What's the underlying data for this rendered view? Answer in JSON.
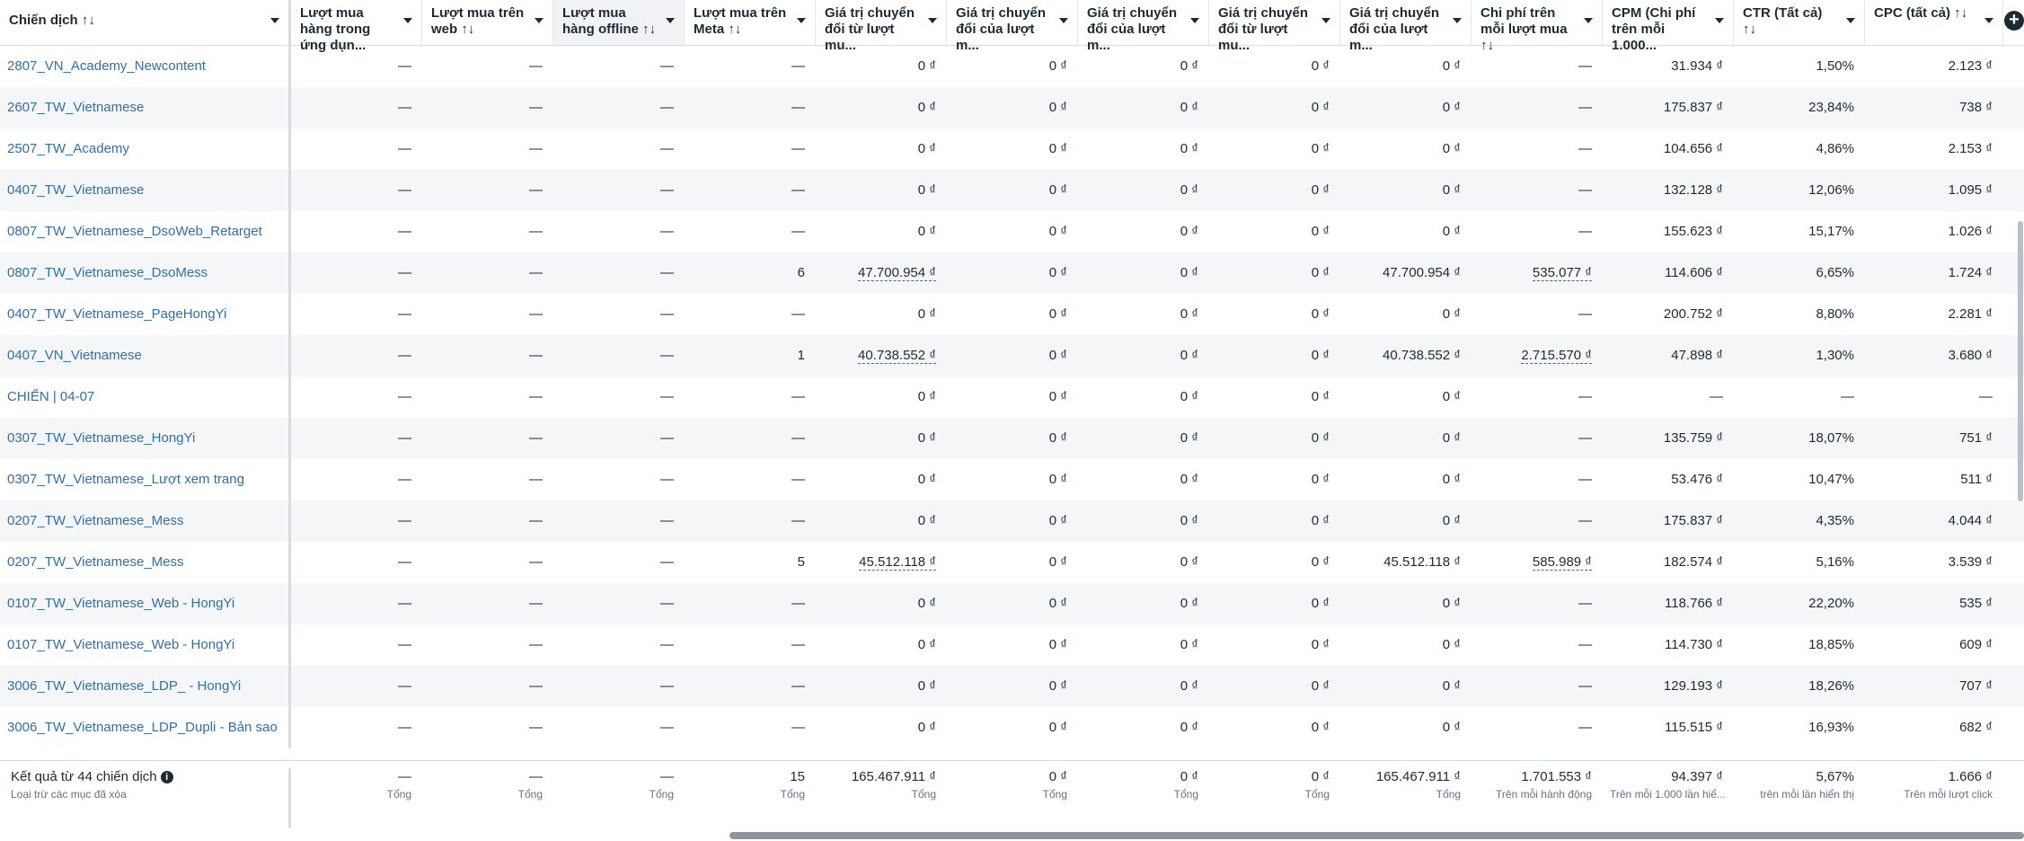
{
  "columns": [
    {
      "key": "campaign",
      "label": "Chiến dịch ↑↓"
    },
    {
      "key": "app_purchases",
      "label": "Lượt mua hàng trong ứng dụn..."
    },
    {
      "key": "web_purchases",
      "label": "Lượt mua trên web ↑↓"
    },
    {
      "key": "offline_purchases",
      "label": "Lượt mua hàng offline ↑↓"
    },
    {
      "key": "meta_purchases",
      "label": "Lượt mua trên Meta ↑↓"
    },
    {
      "key": "conv_value_purchases",
      "label": "Giá trị chuyển đổi từ lượt mu..."
    },
    {
      "key": "conv_value_web",
      "label": "Giá trị chuyển đổi của lượt m..."
    },
    {
      "key": "conv_value_offline",
      "label": "Giá trị chuyển đổi của lượt m..."
    },
    {
      "key": "conv_value_app",
      "label": "Giá trị chuyển đổi từ lượt mu..."
    },
    {
      "key": "conv_value_meta",
      "label": "Giá trị chuyển đổi của lượt m..."
    },
    {
      "key": "cost_per_purchase",
      "label": "Chi phí trên mỗi lượt mua ↑↓"
    },
    {
      "key": "cpm",
      "label": "CPM (Chi phí trên mỗi 1.000..."
    },
    {
      "key": "ctr",
      "label": "CTR (Tất cả) ↑↓"
    },
    {
      "key": "cpc",
      "label": "CPC (tất cả) ↑↓"
    }
  ],
  "rows": [
    [
      "2807_VN_Academy_Newcontent",
      "—",
      "—",
      "—",
      "—",
      "0 ₫",
      "0 ₫",
      "0 ₫",
      "0 ₫",
      "0 ₫",
      "—",
      "31.934 ₫",
      "1,50%",
      "2.123 ₫"
    ],
    [
      "2607_TW_Vietnamese",
      "—",
      "—",
      "—",
      "—",
      "0 ₫",
      "0 ₫",
      "0 ₫",
      "0 ₫",
      "0 ₫",
      "—",
      "175.837 ₫",
      "23,84%",
      "738 ₫"
    ],
    [
      "2507_TW_Academy",
      "—",
      "—",
      "—",
      "—",
      "0 ₫",
      "0 ₫",
      "0 ₫",
      "0 ₫",
      "0 ₫",
      "—",
      "104.656 ₫",
      "4,86%",
      "2.153 ₫"
    ],
    [
      "0407_TW_Vietnamese",
      "—",
      "—",
      "—",
      "—",
      "0 ₫",
      "0 ₫",
      "0 ₫",
      "0 ₫",
      "0 ₫",
      "—",
      "132.128 ₫",
      "12,06%",
      "1.095 ₫"
    ],
    [
      "0807_TW_Vietnamese_DsoWeb_Retarget",
      "—",
      "—",
      "—",
      "—",
      "0 ₫",
      "0 ₫",
      "0 ₫",
      "0 ₫",
      "0 ₫",
      "—",
      "155.623 ₫",
      "15,17%",
      "1.026 ₫"
    ],
    [
      "0807_TW_Vietnamese_DsoMess",
      "—",
      "—",
      "—",
      "6",
      "47.700.954 ₫",
      "0 ₫",
      "0 ₫",
      "0 ₫",
      "47.700.954 ₫",
      "535.077 ₫",
      "114.606 ₫",
      "6,65%",
      "1.724 ₫"
    ],
    [
      "0407_TW_Vietnamese_PageHongYi",
      "—",
      "—",
      "—",
      "—",
      "0 ₫",
      "0 ₫",
      "0 ₫",
      "0 ₫",
      "0 ₫",
      "—",
      "200.752 ₫",
      "8,80%",
      "2.281 ₫"
    ],
    [
      "0407_VN_Vietnamese",
      "—",
      "—",
      "—",
      "1",
      "40.738.552 ₫",
      "0 ₫",
      "0 ₫",
      "0 ₫",
      "40.738.552 ₫",
      "2.715.570 ₫",
      "47.898 ₫",
      "1,30%",
      "3.680 ₫"
    ],
    [
      "CHIẾN | 04-07",
      "—",
      "—",
      "—",
      "—",
      "0 ₫",
      "0 ₫",
      "0 ₫",
      "0 ₫",
      "0 ₫",
      "—",
      "—",
      "—",
      "—"
    ],
    [
      "0307_TW_Vietnamese_HongYi",
      "—",
      "—",
      "—",
      "—",
      "0 ₫",
      "0 ₫",
      "0 ₫",
      "0 ₫",
      "0 ₫",
      "—",
      "135.759 ₫",
      "18,07%",
      "751 ₫"
    ],
    [
      "0307_TW_Vietnamese_Lượt xem trang",
      "—",
      "—",
      "—",
      "—",
      "0 ₫",
      "0 ₫",
      "0 ₫",
      "0 ₫",
      "0 ₫",
      "—",
      "53.476 ₫",
      "10,47%",
      "511 ₫"
    ],
    [
      "0207_TW_Vietnamese_Mess",
      "—",
      "—",
      "—",
      "—",
      "0 ₫",
      "0 ₫",
      "0 ₫",
      "0 ₫",
      "0 ₫",
      "—",
      "175.837 ₫",
      "4,35%",
      "4.044 ₫"
    ],
    [
      "0207_TW_Vietnamese_Mess",
      "—",
      "—",
      "—",
      "5",
      "45.512.118 ₫",
      "0 ₫",
      "0 ₫",
      "0 ₫",
      "45.512.118 ₫",
      "585.989 ₫",
      "182.574 ₫",
      "5,16%",
      "3.539 ₫"
    ],
    [
      "0107_TW_Vietnamese_Web - HongYi",
      "—",
      "—",
      "—",
      "—",
      "0 ₫",
      "0 ₫",
      "0 ₫",
      "0 ₫",
      "0 ₫",
      "—",
      "118.766 ₫",
      "22,20%",
      "535 ₫"
    ],
    [
      "0107_TW_Vietnamese_Web - HongYi",
      "—",
      "—",
      "—",
      "—",
      "0 ₫",
      "0 ₫",
      "0 ₫",
      "0 ₫",
      "0 ₫",
      "—",
      "114.730 ₫",
      "18,85%",
      "609 ₫"
    ],
    [
      "3006_TW_Vietnamese_LDP_ - HongYi",
      "—",
      "—",
      "—",
      "—",
      "0 ₫",
      "0 ₫",
      "0 ₫",
      "0 ₫",
      "0 ₫",
      "—",
      "129.193 ₫",
      "18,26%",
      "707 ₫"
    ],
    [
      "3006_TW_Vietnamese_LDP_Dupli - Bản sao",
      "—",
      "—",
      "—",
      "—",
      "0 ₫",
      "0 ₫",
      "0 ₫",
      "0 ₫",
      "0 ₫",
      "—",
      "115.515 ₫",
      "16,93%",
      "682 ₫"
    ]
  ],
  "footer": {
    "title": "Kết quả từ 44 chiến dịch",
    "subtitle": "Loại trừ các mục đã xóa",
    "cells": [
      {
        "value": "—",
        "label": "Tổng"
      },
      {
        "value": "—",
        "label": "Tổng"
      },
      {
        "value": "—",
        "label": "Tổng"
      },
      {
        "value": "15",
        "label": "Tổng"
      },
      {
        "value": "165.467.911 ₫",
        "label": "Tổng"
      },
      {
        "value": "0 ₫",
        "label": "Tổng"
      },
      {
        "value": "0 ₫",
        "label": "Tổng"
      },
      {
        "value": "0 ₫",
        "label": "Tổng"
      },
      {
        "value": "165.467.911 ₫",
        "label": "Tổng"
      },
      {
        "value": "1.701.553 ₫",
        "label": "Trên mỗi hành động"
      },
      {
        "value": "94.397 ₫",
        "label": "Trên mỗi 1.000 lần hiể..."
      },
      {
        "value": "5,67%",
        "label": "trên mỗi lần hiển thị"
      },
      {
        "value": "1.666 ₫",
        "label": "Trên mỗi lượt click"
      }
    ]
  },
  "icons": {
    "add_column": "plus-icon",
    "sort": "sort-arrows",
    "dropdown": "caret-down-icon",
    "info": "info-icon"
  }
}
